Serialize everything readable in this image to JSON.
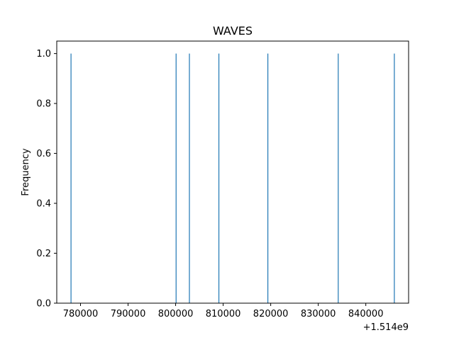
{
  "chart_data": {
    "type": "bar",
    "title": "WAVES",
    "xlabel": "",
    "ylabel": "Frequency",
    "x_offset_label": "+1.514e9",
    "xlim": [
      775000,
      849000
    ],
    "ylim": [
      0,
      1.05
    ],
    "xticks": [
      780000,
      790000,
      800000,
      810000,
      820000,
      830000,
      840000
    ],
    "xtick_labels": [
      "780000",
      "790000",
      "800000",
      "810000",
      "820000",
      "830000",
      "840000"
    ],
    "yticks": [
      0,
      0.2,
      0.4,
      0.6,
      0.8,
      1.0
    ],
    "ytick_labels": [
      "0.0",
      "0.2",
      "0.4",
      "0.6",
      "0.8",
      "1.0"
    ],
    "grid": false,
    "bar_color": "#1f77b4",
    "series": [
      {
        "values": [
          {
            "x": 778000,
            "y": 1
          },
          {
            "x": 800100,
            "y": 1
          },
          {
            "x": 802900,
            "y": 1
          },
          {
            "x": 809100,
            "y": 1
          },
          {
            "x": 819400,
            "y": 1
          },
          {
            "x": 834200,
            "y": 1
          },
          {
            "x": 846000,
            "y": 1
          }
        ]
      }
    ]
  }
}
